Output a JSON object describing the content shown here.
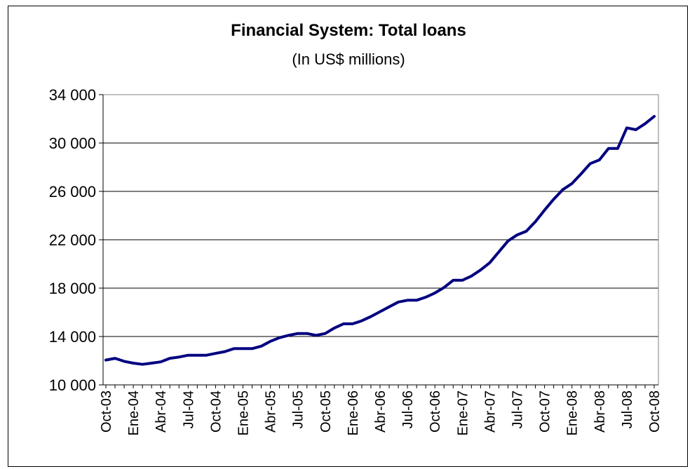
{
  "chart_data": {
    "type": "line",
    "title": "Financial System: Total loans",
    "subtitle": "(In US$ millions)",
    "xlabel": "",
    "ylabel": "",
    "ylim": [
      10000,
      34000
    ],
    "yticks": [
      10000,
      14000,
      18000,
      22000,
      26000,
      30000,
      34000
    ],
    "ytick_labels": [
      "10 000",
      "14 000",
      "18 000",
      "22 000",
      "26 000",
      "30 000",
      "34 000"
    ],
    "grid": true,
    "legend": "none",
    "x_tick_labels": [
      "Oct-03",
      "Ene-04",
      "Abr-04",
      "Jul-04",
      "Oct-04",
      "Ene-05",
      "Abr-05",
      "Jul-05",
      "Oct-05",
      "Ene-06",
      "Abr-06",
      "Jul-06",
      "Oct-06",
      "Ene-07",
      "Abr-07",
      "Jul-07",
      "Oct-07",
      "Ene-08",
      "Abr-08",
      "Jul-08",
      "Oct-08"
    ],
    "x_tick_every": 3,
    "series": [
      {
        "color": "#000080",
        "values": [
          12050,
          12200,
          11950,
          11800,
          11700,
          11800,
          11900,
          12200,
          12300,
          12450,
          12450,
          12450,
          12600,
          12750,
          13000,
          13000,
          13000,
          13200,
          13600,
          13900,
          14100,
          14250,
          14250,
          14100,
          14250,
          14700,
          15050,
          15050,
          15300,
          15650,
          16050,
          16450,
          16850,
          17000,
          17000,
          17250,
          17600,
          18050,
          18650,
          18650,
          19000,
          19500,
          20100,
          21000,
          21900,
          22400,
          22700,
          23500,
          24450,
          25350,
          26150,
          26650,
          27450,
          28300,
          28600,
          29550,
          29550,
          31250,
          31100,
          31600,
          32200
        ]
      }
    ]
  }
}
